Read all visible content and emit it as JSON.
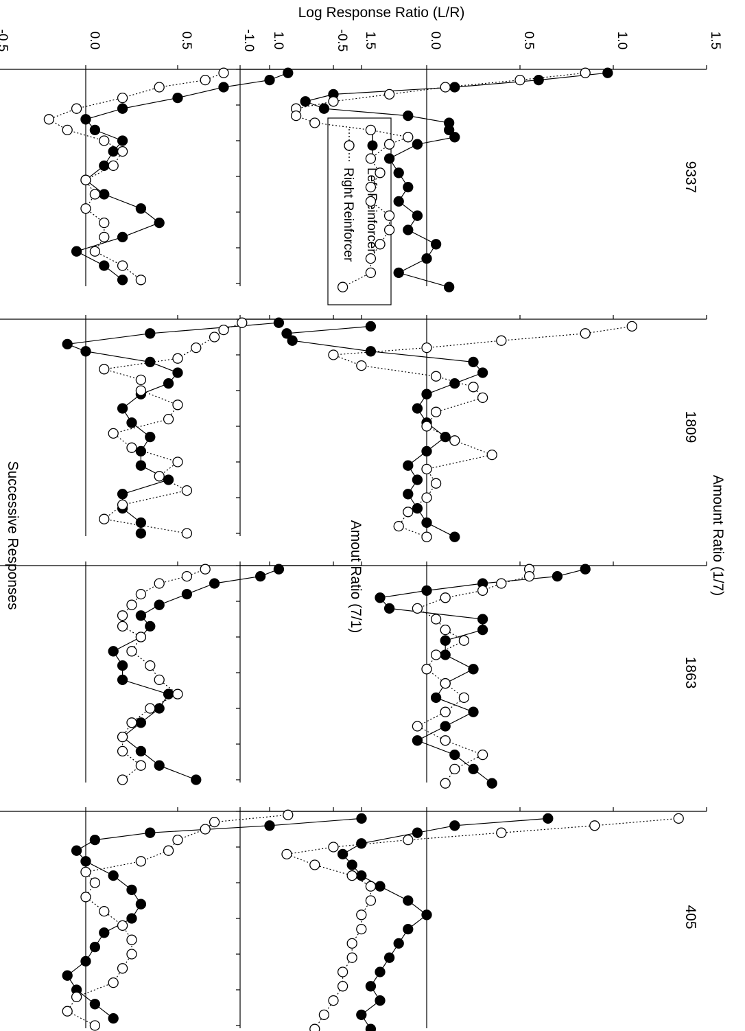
{
  "figure": {
    "ylabel": "Log Response Ratio (L/R)",
    "xlabel": "Successive Responses",
    "condition_labels": [
      "Amount Ratio (1/7)",
      "Amout Ratio (7/1)"
    ],
    "subjects": [
      "9337",
      "1809",
      "1863",
      "405"
    ]
  },
  "legend": {
    "items": [
      {
        "label": "Left Reinforcer",
        "marker": "filled-circle",
        "line": "solid"
      },
      {
        "label": "Right Reinforcer",
        "marker": "open-circle",
        "line": "dotted"
      }
    ]
  },
  "colors": {
    "ink": "#000000",
    "open_fill": "#ffffff"
  },
  "chart_data": [
    {
      "type": "scatter",
      "subject": "9337",
      "condition": "Amount Ratio (1/7)",
      "xlim": [
        0,
        60
      ],
      "ylim": [
        -1.0,
        1.5
      ],
      "xticks": [
        "0",
        "10",
        "20",
        "30",
        "40",
        "50",
        "60"
      ],
      "yticks": [
        "-1.0",
        "-0.5",
        "0.0",
        "0.5",
        "1.0",
        "1.5"
      ],
      "series": [
        {
          "name": "Left Reinforcer",
          "x": [
            1,
            3,
            5,
            7,
            9,
            11,
            13,
            15,
            17,
            19,
            21,
            25,
            29,
            33,
            37,
            41,
            45,
            49,
            53,
            57,
            61
          ],
          "y": [
            0.97,
            0.6,
            0.15,
            -0.5,
            -0.65,
            -0.55,
            -0.1,
            0.12,
            0.12,
            0.15,
            -0.05,
            -0.2,
            -0.15,
            -0.1,
            -0.15,
            -0.05,
            -0.1,
            0.05,
            0.0,
            -0.15,
            0.12
          ]
        },
        {
          "name": "Right Reinforcer",
          "x": [
            1,
            3,
            5,
            7,
            9,
            11,
            13,
            15,
            17,
            19,
            21,
            25,
            29,
            33,
            37,
            41,
            45,
            49,
            53,
            57,
            61
          ],
          "y": [
            0.85,
            0.5,
            0.1,
            -0.2,
            -0.5,
            -0.7,
            -0.7,
            -0.6,
            -0.3,
            -0.1,
            -0.2,
            -0.3,
            -0.25,
            -0.3,
            -0.3,
            -0.2,
            -0.2,
            -0.25,
            -0.3,
            -0.3,
            -0.45
          ]
        }
      ]
    },
    {
      "type": "scatter",
      "subject": "1809",
      "condition": "Amount Ratio (1/7)",
      "xlim": [
        0,
        60
      ],
      "ylim": [
        -1.0,
        1.5
      ],
      "series": [
        {
          "name": "Left Reinforcer",
          "x": [
            2,
            4,
            6,
            9,
            12,
            15,
            18,
            21,
            25,
            29,
            33,
            37,
            41,
            45,
            49,
            53,
            57,
            61
          ],
          "y": [
            -0.3,
            -0.75,
            -0.72,
            -0.3,
            0.25,
            0.3,
            0.15,
            0.0,
            -0.05,
            0.0,
            0.1,
            0.0,
            -0.1,
            -0.05,
            -0.1,
            -0.05,
            0.0,
            0.15
          ]
        },
        {
          "name": "Right Reinforcer",
          "x": [
            2,
            4,
            6,
            8,
            10,
            13,
            16,
            19,
            22,
            26,
            30,
            34,
            38,
            42,
            46,
            50,
            54,
            58,
            61
          ],
          "y": [
            1.1,
            0.85,
            0.4,
            0.0,
            -0.5,
            -0.35,
            0.05,
            0.25,
            0.3,
            0.05,
            0.0,
            0.15,
            0.35,
            0.0,
            0.05,
            0.0,
            -0.1,
            -0.15,
            0.0
          ]
        }
      ]
    },
    {
      "type": "scatter",
      "subject": "1863",
      "condition": "Amount Ratio (1/7)",
      "xlim": [
        0,
        60
      ],
      "ylim": [
        -1.0,
        1.5
      ],
      "series": [
        {
          "name": "Left Reinforcer",
          "x": [
            1,
            3,
            5,
            7,
            9,
            12,
            15,
            18,
            21,
            25,
            29,
            33,
            37,
            41,
            45,
            49,
            53,
            57,
            61
          ],
          "y": [
            0.85,
            0.7,
            0.3,
            0.0,
            -0.25,
            -0.2,
            0.3,
            0.3,
            0.1,
            0.1,
            0.25,
            0.1,
            0.05,
            0.25,
            0.1,
            -0.05,
            0.15,
            0.25,
            0.35
          ]
        },
        {
          "name": "Right Reinforcer",
          "x": [
            1,
            3,
            5,
            7,
            9,
            12,
            15,
            18,
            21,
            25,
            29,
            33,
            37,
            41,
            45,
            49,
            53,
            57,
            61
          ],
          "y": [
            0.55,
            0.55,
            0.4,
            0.3,
            0.1,
            -0.05,
            0.05,
            0.1,
            0.2,
            0.05,
            0.0,
            0.1,
            0.2,
            0.1,
            -0.05,
            0.1,
            0.3,
            0.15,
            0.1
          ]
        }
      ]
    },
    {
      "type": "scatter",
      "subject": "405",
      "condition": "Amount Ratio (1/7)",
      "xlim": [
        0,
        60
      ],
      "ylim": [
        -1.0,
        1.5
      ],
      "series": [
        {
          "name": "Left Reinforcer",
          "x": [
            2,
            4,
            6,
            9,
            12,
            15,
            18,
            21,
            25,
            29,
            33,
            37,
            41,
            45,
            49,
            53,
            57,
            61
          ],
          "y": [
            0.65,
            0.15,
            -0.05,
            -0.35,
            -0.45,
            -0.4,
            -0.35,
            -0.25,
            -0.1,
            0.0,
            -0.1,
            -0.15,
            -0.2,
            -0.25,
            -0.3,
            -0.25,
            -0.35,
            -0.3
          ]
        },
        {
          "name": "Right Reinforcer",
          "x": [
            2,
            4,
            6,
            8,
            10,
            12,
            15,
            18,
            21,
            25,
            29,
            33,
            37,
            41,
            45,
            49,
            53,
            57,
            61
          ],
          "y": [
            1.35,
            0.9,
            0.4,
            -0.1,
            -0.5,
            -0.75,
            -0.6,
            -0.4,
            -0.3,
            -0.3,
            -0.35,
            -0.35,
            -0.4,
            -0.4,
            -0.45,
            -0.45,
            -0.5,
            -0.55,
            -0.6
          ]
        }
      ]
    },
    {
      "type": "scatter",
      "subject": "9337",
      "condition": "Amout Ratio (7/1)",
      "xlim": [
        0,
        60
      ],
      "ylim": [
        -1.0,
        1.5
      ],
      "series": [
        {
          "name": "Left Reinforcer",
          "x": [
            1,
            3,
            5,
            8,
            11,
            14,
            17,
            20,
            23,
            27,
            31,
            35,
            39,
            43,
            47,
            51,
            55,
            59
          ],
          "y": [
            1.1,
            1.0,
            0.75,
            0.5,
            0.2,
            0.0,
            0.05,
            0.2,
            0.15,
            0.1,
            0.0,
            0.1,
            0.3,
            0.4,
            0.2,
            -0.05,
            0.1,
            0.2
          ]
        },
        {
          "name": "Right Reinforcer",
          "x": [
            1,
            3,
            5,
            8,
            11,
            14,
            17,
            20,
            23,
            27,
            31,
            35,
            39,
            43,
            47,
            51,
            55,
            59
          ],
          "y": [
            0.75,
            0.65,
            0.4,
            0.2,
            -0.05,
            -0.2,
            -0.1,
            0.1,
            0.2,
            0.15,
            0.0,
            0.05,
            0.0,
            0.1,
            0.1,
            0.05,
            0.2,
            0.3
          ]
        }
      ]
    },
    {
      "type": "scatter",
      "subject": "1809",
      "condition": "Amout Ratio (7/1)",
      "xlim": [
        0,
        60
      ],
      "ylim": [
        -1.0,
        1.5
      ],
      "series": [
        {
          "name": "Left Reinforcer",
          "x": [
            1,
            4,
            7,
            9,
            12,
            15,
            18,
            21,
            25,
            29,
            33,
            37,
            41,
            45,
            49,
            53,
            57,
            60
          ],
          "y": [
            1.05,
            0.35,
            -0.1,
            0.0,
            0.35,
            0.5,
            0.45,
            0.3,
            0.2,
            0.25,
            0.35,
            0.3,
            0.3,
            0.45,
            0.2,
            0.2,
            0.3,
            0.3
          ]
        },
        {
          "name": "Right Reinforcer",
          "x": [
            1,
            3,
            5,
            8,
            11,
            14,
            17,
            20,
            24,
            28,
            32,
            36,
            40,
            44,
            48,
            52,
            56,
            60
          ],
          "y": [
            0.85,
            0.75,
            0.7,
            0.6,
            0.5,
            0.1,
            0.3,
            0.3,
            0.5,
            0.45,
            0.15,
            0.25,
            0.5,
            0.4,
            0.55,
            0.2,
            0.1,
            0.55
          ]
        }
      ]
    },
    {
      "type": "scatter",
      "subject": "1863",
      "condition": "Amout Ratio (7/1)",
      "xlim": [
        0,
        60
      ],
      "ylim": [
        -1.0,
        1.5
      ],
      "series": [
        {
          "name": "Left Reinforcer",
          "x": [
            1,
            3,
            5,
            8,
            11,
            14,
            17,
            20,
            24,
            28,
            32,
            36,
            40,
            44,
            48,
            52,
            56,
            60
          ],
          "y": [
            1.05,
            0.95,
            0.7,
            0.55,
            0.4,
            0.3,
            0.35,
            0.3,
            0.15,
            0.2,
            0.2,
            0.45,
            0.4,
            0.3,
            0.2,
            0.3,
            0.4,
            0.6
          ]
        },
        {
          "name": "Right Reinforcer",
          "x": [
            1,
            3,
            5,
            8,
            11,
            14,
            17,
            20,
            24,
            28,
            32,
            36,
            40,
            44,
            48,
            52,
            56,
            60
          ],
          "y": [
            0.65,
            0.55,
            0.4,
            0.3,
            0.25,
            0.2,
            0.2,
            0.3,
            0.25,
            0.35,
            0.4,
            0.5,
            0.35,
            0.25,
            0.2,
            0.2,
            0.3,
            0.2
          ]
        }
      ]
    },
    {
      "type": "scatter",
      "subject": "405",
      "condition": "Amout Ratio (7/1)",
      "xlim": [
        0,
        60
      ],
      "ylim": [
        -1.0,
        1.5
      ],
      "series": [
        {
          "name": "Left Reinforcer",
          "x": [
            2,
            4,
            6,
            8,
            11,
            14,
            18,
            22,
            26,
            30,
            34,
            38,
            42,
            46,
            50,
            54,
            58
          ],
          "y": [
            1.5,
            1.0,
            0.35,
            0.05,
            -0.05,
            0.0,
            0.15,
            0.25,
            0.3,
            0.25,
            0.1,
            0.05,
            0.0,
            -0.1,
            -0.05,
            0.05,
            0.15
          ]
        },
        {
          "name": "Right Reinforcer",
          "x": [
            1,
            3,
            5,
            8,
            11,
            14,
            17,
            20,
            24,
            28,
            32,
            36,
            40,
            44,
            48,
            52,
            56,
            60
          ],
          "y": [
            1.1,
            0.7,
            0.65,
            0.5,
            0.45,
            0.3,
            0.0,
            0.05,
            0.0,
            0.1,
            0.2,
            0.25,
            0.25,
            0.2,
            0.15,
            -0.05,
            -0.1,
            0.05
          ]
        }
      ]
    }
  ]
}
